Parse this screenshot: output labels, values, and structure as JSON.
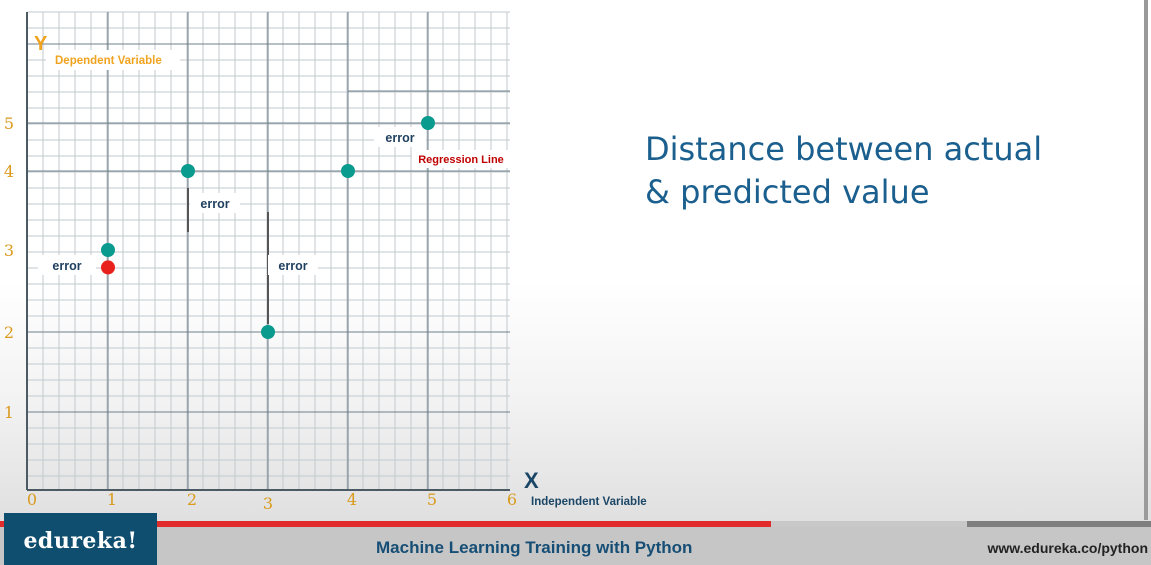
{
  "chart_data": {
    "type": "scatter",
    "x_axis_letter": "X",
    "y_axis_letter": "Y",
    "xlabel": "Independent Variable",
    "ylabel": "Dependent Variable",
    "x_ticks": [
      "0",
      "1",
      "2",
      "3",
      "4",
      "5",
      "6"
    ],
    "y_ticks": [
      "1",
      "2",
      "3",
      "4",
      "5"
    ],
    "actual_points": [
      {
        "x": 1,
        "y": 3
      },
      {
        "x": 2,
        "y": 4
      },
      {
        "x": 3,
        "y": 2
      },
      {
        "x": 4,
        "y": 4
      },
      {
        "x": 5,
        "y": 5
      }
    ],
    "predicted_point": {
      "x": 1,
      "y": 2.8
    },
    "error_label": "error",
    "regression_label": "Regression Line",
    "grid": true,
    "colors": {
      "point": "#0a9a8e",
      "predicted": "#e8211c",
      "axis_tick_text": "#d99b1e",
      "dependent_label": "#f0a31e",
      "regression_label": "#c00000",
      "error_text": "#1f3f5f",
      "grid_minor": "#c3cace",
      "grid_major": "#6f8089"
    }
  },
  "heading": {
    "line1": "Distance between actual",
    "line2": "& predicted value"
  },
  "footer": {
    "logo_text": "edureka!",
    "course_title": "Machine Learning Training with Python",
    "website": "www.edureka.co/python",
    "progress": 0.67,
    "buffered": 0.84
  }
}
